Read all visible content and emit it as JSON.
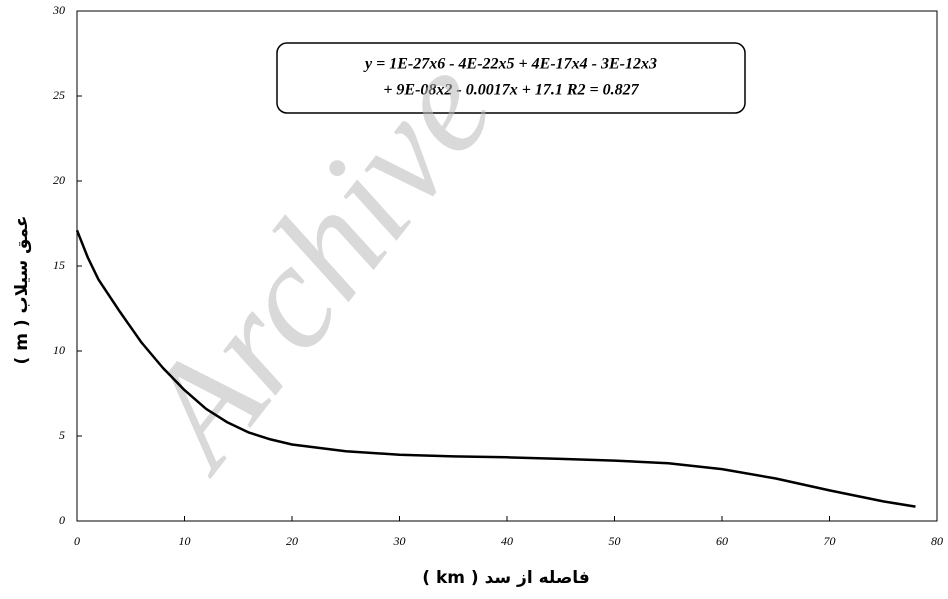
{
  "chart_data": {
    "type": "line",
    "xlabel": "فاصله از سد ( km )",
    "ylabel": "عمق سیلاب ( m )",
    "annotation": [
      "y = 1E-27x6 - 4E-22x5 + 4E-17x4 - 3E-12x3",
      "+ 9E-08x2 - 0.0017x + 17.1    R2 = 0.827"
    ],
    "watermark": "Archive",
    "x": [
      0,
      1,
      2,
      4,
      6,
      8,
      10,
      12,
      14,
      16,
      18,
      20,
      25,
      30,
      35,
      40,
      45,
      50,
      55,
      60,
      65,
      70,
      75,
      78
    ],
    "values": [
      17.1,
      15.5,
      14.2,
      12.3,
      10.5,
      9.0,
      7.7,
      6.6,
      5.8,
      5.2,
      4.8,
      4.5,
      4.1,
      3.9,
      3.8,
      3.75,
      3.65,
      3.55,
      3.4,
      3.05,
      2.5,
      1.8,
      1.15,
      0.85
    ],
    "color": "#000000",
    "xlim": [
      0,
      80
    ],
    "ylim": [
      0,
      30
    ],
    "xticks": [
      0,
      10,
      20,
      30,
      40,
      50,
      60,
      70,
      80
    ],
    "yticks": [
      0,
      5,
      10,
      15,
      20,
      25,
      30
    ]
  }
}
